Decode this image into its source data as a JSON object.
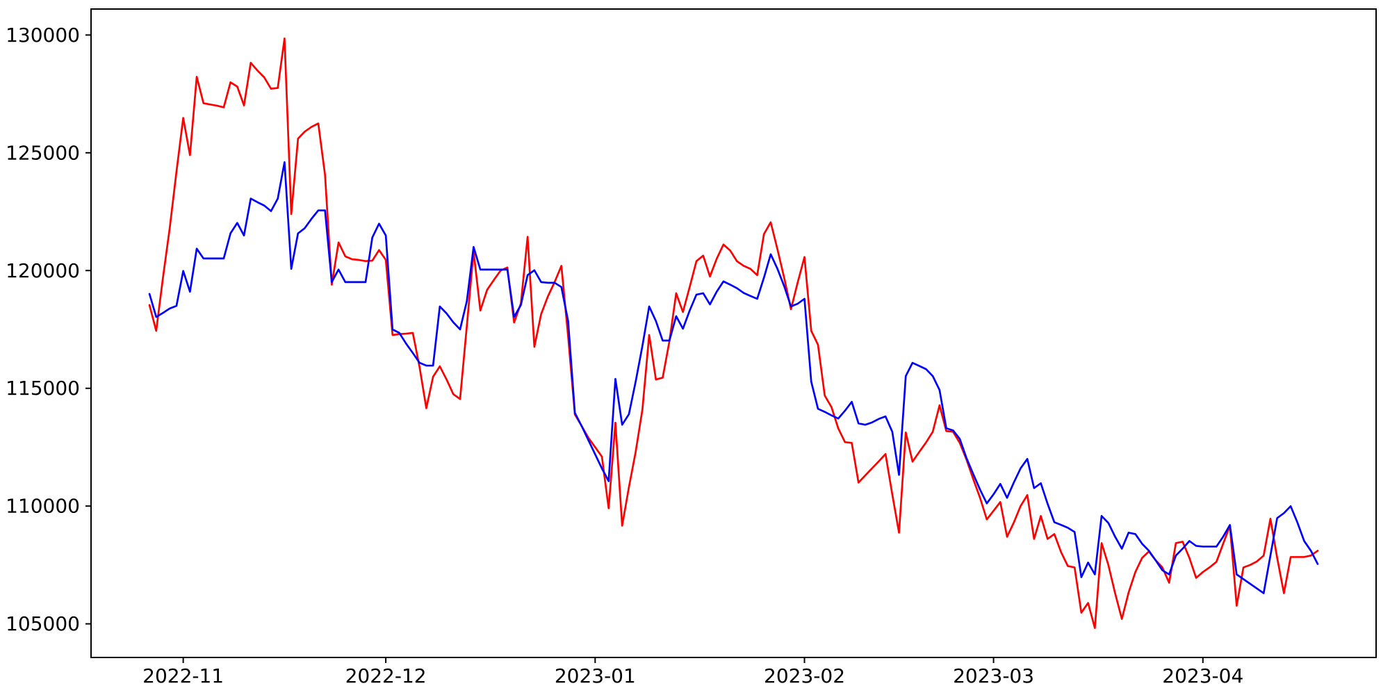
{
  "chart_data": {
    "type": "line",
    "title": "",
    "xlabel": "",
    "ylabel": "",
    "grid": false,
    "legend": null,
    "background_color": "#ffffff",
    "axes_color": "#000000",
    "tick_label_color": "#000000",
    "ylim": [
      103572,
      131103
    ],
    "xlim_day_offsets": [
      -8.65,
      181.65
    ],
    "y_ticks": [
      105000,
      110000,
      115000,
      120000,
      125000,
      130000
    ],
    "y_tick_labels": [
      "105000",
      "110000",
      "115000",
      "120000",
      "125000",
      "130000"
    ],
    "x_tick_dates": [
      "2022-11-01",
      "2022-12-01",
      "2023-01-01",
      "2023-02-01",
      "2023-03-01",
      "2023-04-01"
    ],
    "x_tick_labels": [
      "2022-11",
      "2022-12",
      "2023-01",
      "2023-02",
      "2023-03",
      "2023-04"
    ],
    "x_dates": [
      "2022-10-27",
      "2022-10-28",
      "2022-10-29",
      "2022-10-30",
      "2022-10-31",
      "2022-11-01",
      "2022-11-02",
      "2022-11-03",
      "2022-11-04",
      "2022-11-05",
      "2022-11-06",
      "2022-11-07",
      "2022-11-08",
      "2022-11-09",
      "2022-11-10",
      "2022-11-11",
      "2022-11-12",
      "2022-11-13",
      "2022-11-14",
      "2022-11-15",
      "2022-11-16",
      "2022-11-17",
      "2022-11-18",
      "2022-11-19",
      "2022-11-20",
      "2022-11-21",
      "2022-11-22",
      "2022-11-23",
      "2022-11-24",
      "2022-11-25",
      "2022-11-26",
      "2022-11-27",
      "2022-11-28",
      "2022-11-29",
      "2022-11-30",
      "2022-12-01",
      "2022-12-02",
      "2022-12-03",
      "2022-12-04",
      "2022-12-05",
      "2022-12-06",
      "2022-12-07",
      "2022-12-08",
      "2022-12-09",
      "2022-12-10",
      "2022-12-11",
      "2022-12-12",
      "2022-12-13",
      "2022-12-14",
      "2022-12-15",
      "2022-12-16",
      "2022-12-17",
      "2022-12-18",
      "2022-12-19",
      "2022-12-20",
      "2022-12-21",
      "2022-12-22",
      "2022-12-23",
      "2022-12-24",
      "2022-12-25",
      "2022-12-26",
      "2022-12-27",
      "2022-12-28",
      "2022-12-29",
      "2022-12-30",
      "2022-12-31",
      "2023-01-01",
      "2023-01-02",
      "2023-01-03",
      "2023-01-04",
      "2023-01-05",
      "2023-01-06",
      "2023-01-07",
      "2023-01-08",
      "2023-01-09",
      "2023-01-10",
      "2023-01-11",
      "2023-01-12",
      "2023-01-13",
      "2023-01-14",
      "2023-01-15",
      "2023-01-16",
      "2023-01-17",
      "2023-01-18",
      "2023-01-19",
      "2023-01-20",
      "2023-01-21",
      "2023-01-22",
      "2023-01-23",
      "2023-01-24",
      "2023-01-25",
      "2023-01-26",
      "2023-01-27",
      "2023-01-28",
      "2023-01-29",
      "2023-01-30",
      "2023-01-31",
      "2023-02-01",
      "2023-02-02",
      "2023-02-03",
      "2023-02-04",
      "2023-02-05",
      "2023-02-06",
      "2023-02-07",
      "2023-02-08",
      "2023-02-09",
      "2023-02-10",
      "2023-02-11",
      "2023-02-12",
      "2023-02-13",
      "2023-02-14",
      "2023-02-15",
      "2023-02-16",
      "2023-02-17",
      "2023-02-18",
      "2023-02-19",
      "2023-02-20",
      "2023-02-21",
      "2023-02-22",
      "2023-02-23",
      "2023-02-24",
      "2023-02-25",
      "2023-02-26",
      "2023-02-27",
      "2023-02-28",
      "2023-03-01",
      "2023-03-02",
      "2023-03-03",
      "2023-03-04",
      "2023-03-05",
      "2023-03-06",
      "2023-03-07",
      "2023-03-08",
      "2023-03-09",
      "2023-03-10",
      "2023-03-11",
      "2023-03-12",
      "2023-03-13",
      "2023-03-14",
      "2023-03-15",
      "2023-03-16",
      "2023-03-17",
      "2023-03-18",
      "2023-03-19",
      "2023-03-20",
      "2023-03-21",
      "2023-03-22",
      "2023-03-23",
      "2023-03-24",
      "2023-03-25",
      "2023-03-26",
      "2023-03-27",
      "2023-03-28",
      "2023-03-29",
      "2023-03-30",
      "2023-03-31",
      "2023-04-01",
      "2023-04-02",
      "2023-04-03",
      "2023-04-04",
      "2023-04-05",
      "2023-04-06",
      "2023-04-07",
      "2023-04-08",
      "2023-04-09",
      "2023-04-10",
      "2023-04-11",
      "2023-04-12",
      "2023-04-13",
      "2023-04-14",
      "2023-04-15",
      "2023-04-16",
      "2023-04-17",
      "2023-04-18"
    ],
    "series": [
      {
        "name": "red-series",
        "color": "#ff0000",
        "values": [
          118535,
          117441,
          119700,
          121800,
          124200,
          126480,
          124900,
          128228,
          127105,
          127050,
          127000,
          126928,
          127992,
          127811,
          127013,
          128820,
          128490,
          128200,
          127720,
          127752,
          129852,
          122400,
          125600,
          125900,
          126100,
          126245,
          124060,
          119400,
          121194,
          120603,
          120480,
          120450,
          120400,
          120420,
          120869,
          120455,
          117263,
          117300,
          117320,
          117352,
          115900,
          114155,
          115490,
          115934,
          115372,
          114750,
          114545,
          117650,
          120810,
          118300,
          119180,
          119600,
          120000,
          120130,
          117795,
          118600,
          121431,
          116760,
          118150,
          118900,
          119510,
          120200,
          117200,
          113889,
          113400,
          112900,
          112500,
          112100,
          109905,
          113540,
          109166,
          110800,
          112300,
          114100,
          117263,
          115372,
          115450,
          117000,
          119037,
          118240,
          119300,
          120400,
          120632,
          119746,
          120500,
          121105,
          120850,
          120396,
          120200,
          120070,
          119805,
          121548,
          122050,
          120898,
          119687,
          118357,
          119500,
          120573,
          117441,
          116850,
          114693,
          114200,
          113300,
          112713,
          112682,
          111000,
          111300,
          111600,
          111900,
          112211,
          110500,
          108871,
          113126,
          111885,
          112300,
          112700,
          113156,
          114279,
          113185,
          113156,
          112680,
          111970,
          111140,
          110350,
          109433,
          109800,
          110172,
          108694,
          109300,
          110000,
          110468,
          108605,
          109580,
          108605,
          108812,
          108044,
          107453,
          107394,
          105473,
          105886,
          104823,
          108428,
          107500,
          106300,
          105207,
          106330,
          107200,
          107800,
          108073,
          107700,
          107394,
          106744,
          108428,
          108487,
          107800,
          106950,
          107200,
          107400,
          107630,
          108400,
          109166,
          105768,
          107394,
          107500,
          107650,
          107900,
          109462,
          107800,
          106300,
          107837,
          107837,
          107837,
          107900,
          108103
        ]
      },
      {
        "name": "blue-series",
        "color": "#0000ff",
        "values": [
          119007,
          118030,
          118200,
          118390,
          118500,
          119983,
          119100,
          120928,
          120514,
          120514,
          120514,
          120514,
          121578,
          122021,
          121489,
          123055,
          122900,
          122759,
          122523,
          123055,
          124600,
          120071,
          121578,
          121800,
          122198,
          122553,
          122553,
          119510,
          120042,
          119510,
          119510,
          119510,
          119510,
          121400,
          121991,
          121489,
          117500,
          117352,
          116900,
          116500,
          116082,
          115964,
          115964,
          118475,
          118180,
          117800,
          117500,
          118700,
          121000,
          120042,
          120042,
          120042,
          120042,
          120042,
          118032,
          118534,
          119805,
          120012,
          119510,
          119480,
          119480,
          119300,
          117850,
          113954,
          113400,
          112800,
          112200,
          111600,
          111058,
          115400,
          113451,
          113900,
          115283,
          116800,
          118475,
          117855,
          117027,
          117027,
          118062,
          117530,
          118300,
          118978,
          119037,
          118564,
          119100,
          119540,
          119400,
          119250,
          119050,
          118920,
          118800,
          119700,
          120691,
          120072,
          119333,
          118475,
          118593,
          118800,
          115283,
          114131,
          114000,
          113850,
          113717,
          114050,
          114427,
          113510,
          113451,
          113550,
          113700,
          113806,
          113156,
          111324,
          115519,
          116082,
          115950,
          115815,
          115519,
          114929,
          113303,
          113214,
          112850,
          112032,
          111353,
          110700,
          110113,
          110500,
          110941,
          110350,
          111000,
          111600,
          112003,
          110763,
          110970,
          110100,
          109315,
          109200,
          109078,
          108901,
          106981,
          107601,
          107098,
          109580,
          109285,
          108700,
          108191,
          108871,
          108812,
          108400,
          108103,
          107700,
          107276,
          107098,
          107900,
          108191,
          108516,
          108310,
          108280,
          108280,
          108280,
          108700,
          109196,
          107098,
          106900,
          106700,
          106500,
          106300,
          107900,
          109491,
          109700,
          109994,
          109300,
          108516,
          108100,
          107542
        ]
      }
    ]
  }
}
